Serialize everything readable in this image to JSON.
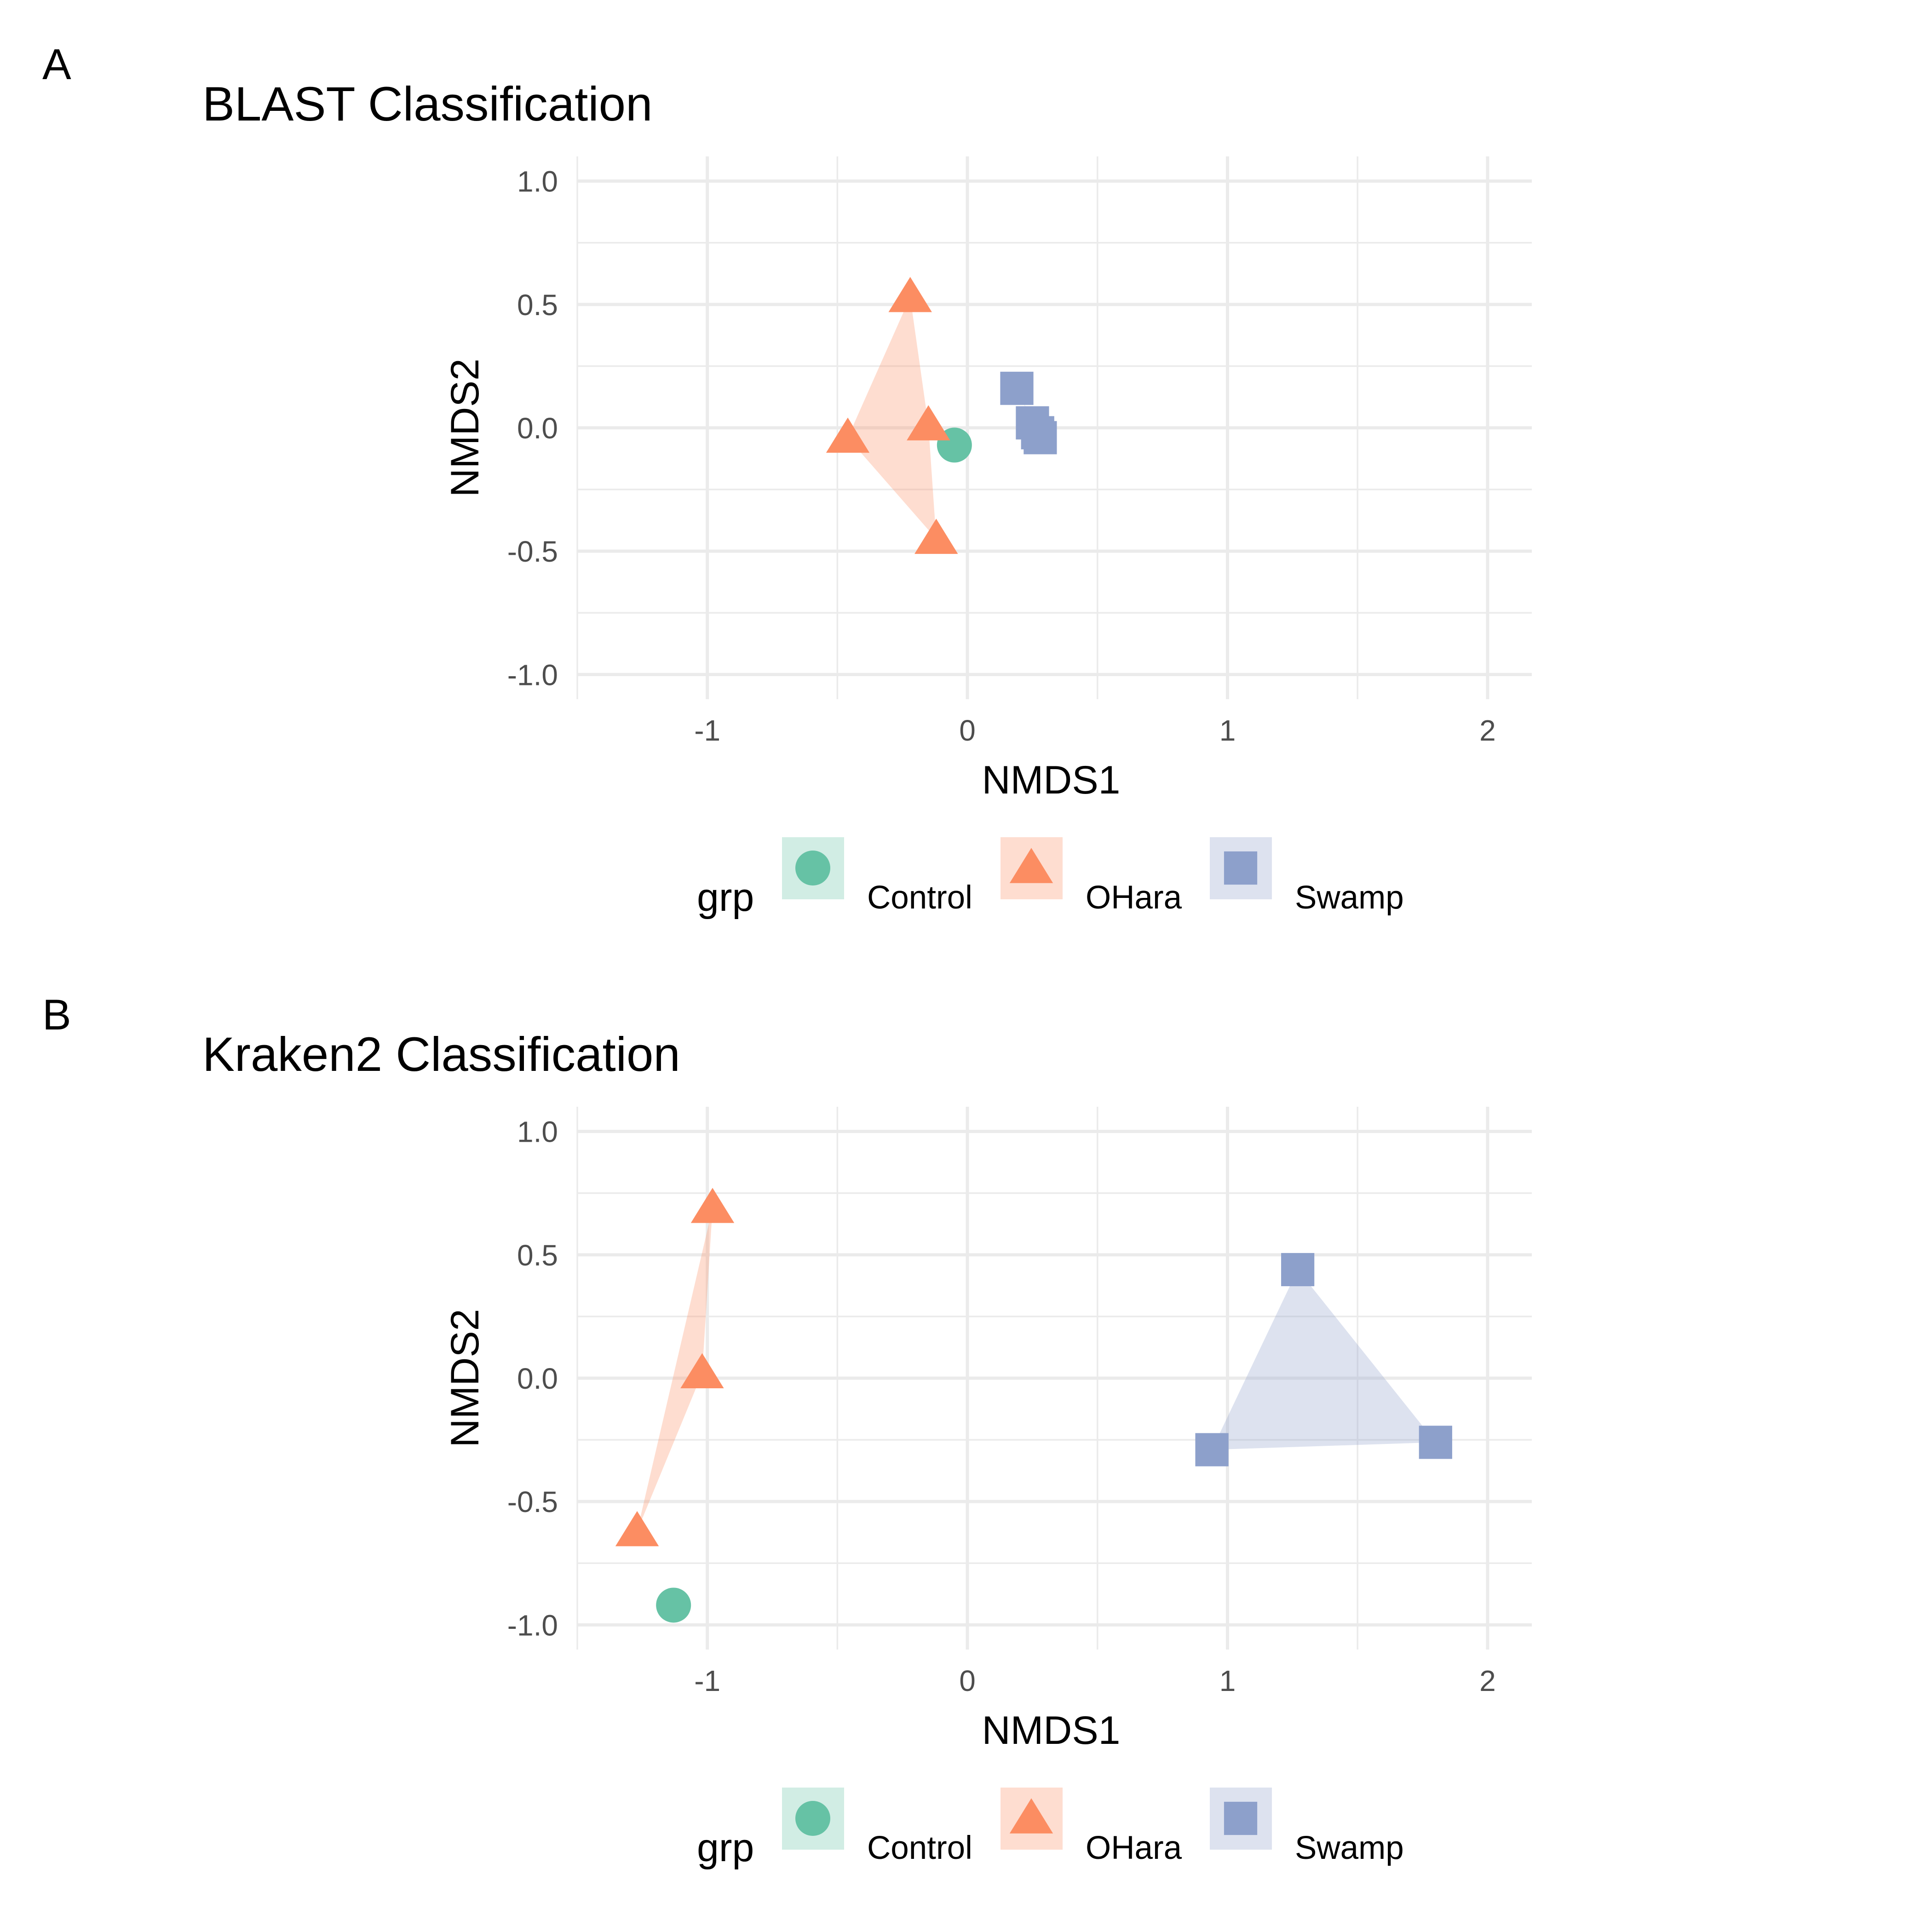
{
  "chart_data": [
    {
      "panel": "A",
      "type": "scatter",
      "title": "BLAST Classification",
      "xlabel": "NMDS1",
      "ylabel": "NMDS2",
      "xlim": [
        -1.5,
        2.17
      ],
      "ylim": [
        -1.1,
        1.1
      ],
      "xticks": [
        -1,
        0,
        1,
        2
      ],
      "xtick_labels": [
        "-1",
        "0",
        "1",
        "2"
      ],
      "yticks": [
        -1.0,
        -0.5,
        0.0,
        0.5,
        1.0
      ],
      "ytick_labels": [
        "-1.0",
        "-0.5",
        "0.0",
        "0.5",
        "1.0"
      ],
      "grid": true,
      "legend_position": "bottom",
      "legend_title": "grp",
      "series": [
        {
          "name": "Control",
          "shape": "circle",
          "color": "#66c2a5",
          "x": [
            -0.05
          ],
          "y": [
            -0.07
          ]
        },
        {
          "name": "OHara",
          "shape": "triangle",
          "color": "#fc8d62",
          "x": [
            -0.22,
            -0.15,
            -0.46,
            -0.12
          ],
          "y": [
            0.53,
            0.01,
            -0.04,
            -0.45
          ]
        },
        {
          "name": "Swamp",
          "shape": "square",
          "color": "#8da0cb",
          "x": [
            0.19,
            0.25,
            0.27,
            0.28
          ],
          "y": [
            0.16,
            0.02,
            -0.02,
            -0.04
          ]
        }
      ]
    },
    {
      "panel": "B",
      "type": "scatter",
      "title": "Kraken2 Classification",
      "xlabel": "NMDS1",
      "ylabel": "NMDS2",
      "xlim": [
        -1.5,
        2.17
      ],
      "ylim": [
        -1.1,
        1.1
      ],
      "xticks": [
        -1,
        0,
        1,
        2
      ],
      "xtick_labels": [
        "-1",
        "0",
        "1",
        "2"
      ],
      "yticks": [
        -1.0,
        -0.5,
        0.0,
        0.5,
        1.0
      ],
      "ytick_labels": [
        "-1.0",
        "-0.5",
        "0.0",
        "0.5",
        "1.0"
      ],
      "grid": true,
      "legend_position": "bottom",
      "legend_title": "grp",
      "series": [
        {
          "name": "Control",
          "shape": "circle",
          "color": "#66c2a5",
          "x": [
            -1.13
          ],
          "y": [
            -0.92
          ]
        },
        {
          "name": "OHara",
          "shape": "triangle",
          "color": "#fc8d62",
          "x": [
            -0.98,
            -1.02,
            -1.27
          ],
          "y": [
            0.69,
            0.02,
            -0.62
          ]
        },
        {
          "name": "Swamp",
          "shape": "square",
          "color": "#8da0cb",
          "x": [
            1.27,
            0.94,
            1.8
          ],
          "y": [
            0.44,
            -0.29,
            -0.26
          ]
        }
      ]
    }
  ]
}
